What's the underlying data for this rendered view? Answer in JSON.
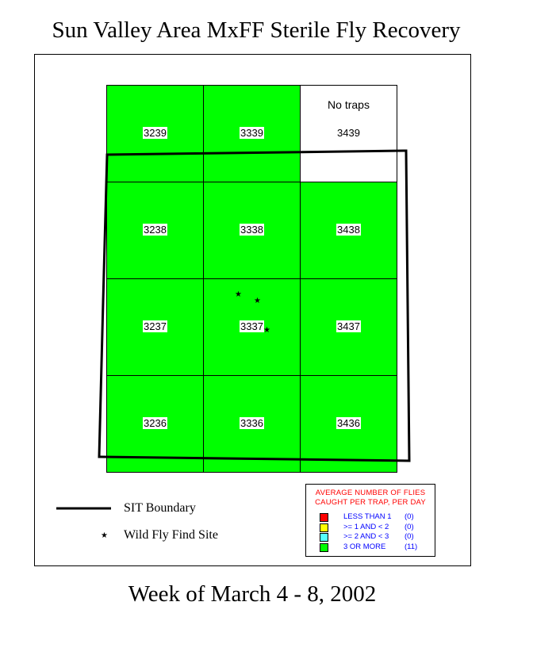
{
  "title": "Sun Valley Area MxFF Sterile Fly Recovery",
  "subtitle": "Week of March 4 - 8, 2002",
  "colors": {
    "green": "#00ff00",
    "red": "#ff0000",
    "yellow": "#ffff00",
    "cyan": "#55ffff",
    "no_traps": "#ffffff"
  },
  "grid": [
    {
      "id": "3239",
      "row": 0,
      "col": 0,
      "category": "3 OR MORE"
    },
    {
      "id": "3339",
      "row": 0,
      "col": 1,
      "category": "3 OR MORE"
    },
    {
      "id": "3439",
      "row": 0,
      "col": 2,
      "category": "none",
      "note": "No traps"
    },
    {
      "id": "3238",
      "row": 1,
      "col": 0,
      "category": "3 OR MORE"
    },
    {
      "id": "3338",
      "row": 1,
      "col": 1,
      "category": "3 OR MORE"
    },
    {
      "id": "3438",
      "row": 1,
      "col": 2,
      "category": "3 OR MORE"
    },
    {
      "id": "3237",
      "row": 2,
      "col": 0,
      "category": "3 OR MORE"
    },
    {
      "id": "3337",
      "row": 2,
      "col": 1,
      "category": "3 OR MORE"
    },
    {
      "id": "3437",
      "row": 2,
      "col": 2,
      "category": "3 OR MORE"
    },
    {
      "id": "3236",
      "row": 3,
      "col": 0,
      "category": "3 OR MORE"
    },
    {
      "id": "3336",
      "row": 3,
      "col": 1,
      "category": "3 OR MORE"
    },
    {
      "id": "3436",
      "row": 3,
      "col": 2,
      "category": "3 OR MORE"
    }
  ],
  "legend_left": {
    "boundary": "SIT Boundary",
    "wild_fly": "Wild Fly Find Site",
    "star": "★"
  },
  "legend": {
    "heading1": "AVERAGE NUMBER OF FLIES",
    "heading2": "CAUGHT PER TRAP, PER DAY",
    "items": [
      {
        "label": "LESS THAN 1",
        "count": "(0)",
        "color": "#ff0000"
      },
      {
        "label": ">= 1 AND < 2",
        "count": "(0)",
        "color": "#ffff00"
      },
      {
        "label": ">= 2 AND < 3",
        "count": "(0)",
        "color": "#55ffff"
      },
      {
        "label": "3 OR MORE",
        "count": "(11)",
        "color": "#00ff00"
      }
    ]
  }
}
